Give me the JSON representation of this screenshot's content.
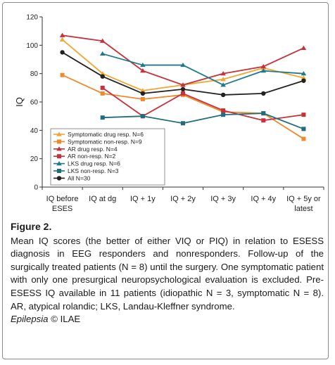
{
  "chart_data": {
    "type": "line",
    "ylabel": "IQ",
    "ylim": [
      0,
      120
    ],
    "yticks": [
      0,
      20,
      40,
      60,
      80,
      100,
      120
    ],
    "categories": [
      [
        "IQ before",
        "ESES"
      ],
      [
        "IQ at dg"
      ],
      [
        "IQ + 1y"
      ],
      [
        "IQ + 2y"
      ],
      [
        "IQ + 3y"
      ],
      [
        "IQ + 4y"
      ],
      [
        "IQ + 5y or",
        "latest"
      ]
    ],
    "legend_position": "bottom-left",
    "series": [
      {
        "name": "Symptomatic drug resp. N=6",
        "color": "#f4a531",
        "marker": "triangle",
        "values": [
          104,
          80,
          68,
          72,
          76,
          84,
          77
        ]
      },
      {
        "name": "Symptomatic non-resp. N=9",
        "color": "#ef8a2c",
        "marker": "square",
        "values": [
          79,
          66,
          62,
          65,
          53,
          52,
          34
        ]
      },
      {
        "name": "AR drug resp. N=4",
        "color": "#c8303a",
        "marker": "triangle",
        "values": [
          107,
          103,
          82,
          72,
          80,
          85,
          98
        ]
      },
      {
        "name": "AR non-resp. N=2",
        "color": "#c8303a",
        "marker": "square",
        "values": [
          null,
          70,
          50,
          66,
          54,
          47,
          51
        ]
      },
      {
        "name": "LKS drug resp. N=6",
        "color": "#1f7a8c",
        "marker": "triangle",
        "values": [
          null,
          94,
          86,
          86,
          72,
          82,
          80
        ]
      },
      {
        "name": "LKS non-resp. N=3",
        "color": "#1f6e80",
        "marker": "square",
        "values": [
          null,
          49,
          50,
          45,
          51,
          52,
          41
        ]
      },
      {
        "name": "All N=30",
        "color": "#222222",
        "marker": "circle",
        "values": [
          95,
          78,
          66,
          69,
          65,
          66,
          75
        ]
      }
    ]
  },
  "caption": {
    "title": "Figure 2.",
    "body": "Mean IQ scores (the better of either VIQ or PIQ) in relation to ESESS diagnosis in EEG responders and nonresponders. Follow-up of the surgically treated patients (N = 8) until the surgery. One symptomatic patient with only one presurgical neuropsychological evaluation is excluded. Pre-ESESS IQ available in 11 patients (idiopathic N = 3, symptomatic N = 8). AR, atypical rolandic; LKS, Landau-Kleffner syndrome.",
    "journal": "Epilepsia",
    "copyright": " © ILAE"
  }
}
